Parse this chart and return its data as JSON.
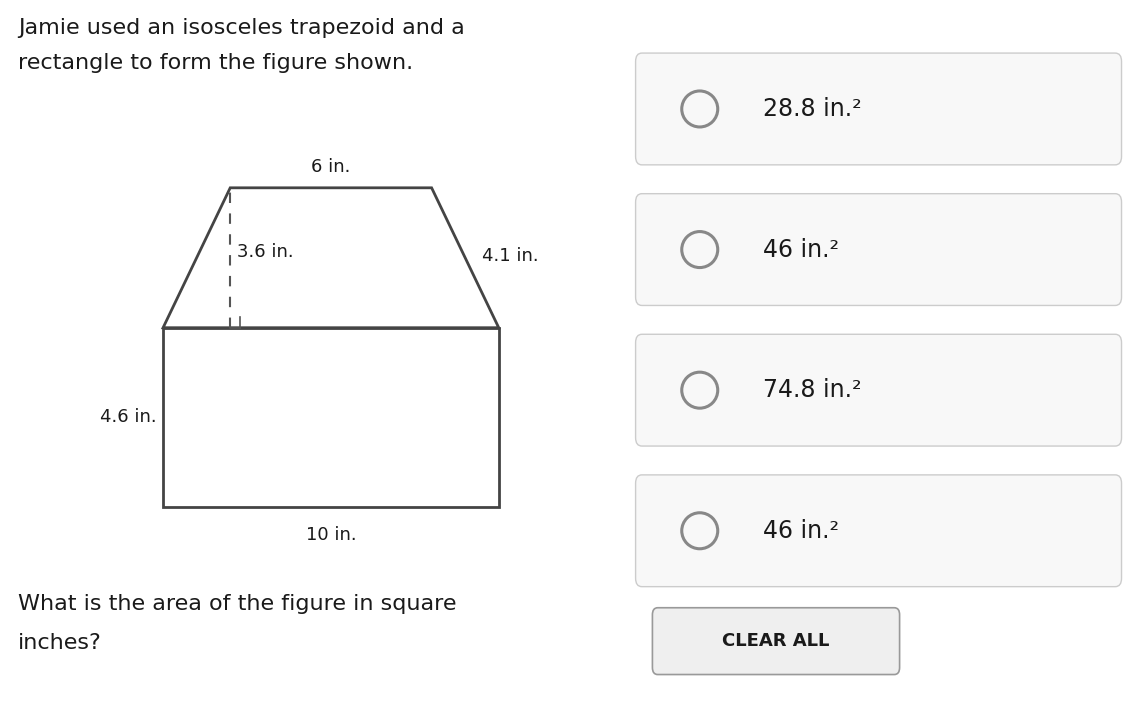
{
  "title_line1": "Jamie used an isosceles trapezoid and a",
  "title_line2": "rectangle to form the figure shown.",
  "question_line1": "What is the area of the figure in square",
  "question_line2": "inches?",
  "choices": [
    "28.8 in.²",
    "46 in.²",
    "74.8 in.²",
    "46 in.²"
  ],
  "clear_btn": "CLEAR ALL",
  "label_6in": "6 in.",
  "label_36in": "3.6 in.",
  "label_41in": "4.1 in.",
  "label_46in": "4.6 in.",
  "label_10in": "10 in.",
  "shape_color": "#444444",
  "dashed_color": "#555555",
  "font_size_title": 16,
  "font_size_label": 13,
  "font_size_choice": 17,
  "font_size_btn": 13,
  "left_bg": "#ffffff",
  "right_bg": "#efefef",
  "choice_box_bg": "#f8f8f8",
  "choice_box_edge": "#cccccc",
  "circle_edge": "#888888",
  "btn_edge": "#999999",
  "btn_bg": "#efefef"
}
